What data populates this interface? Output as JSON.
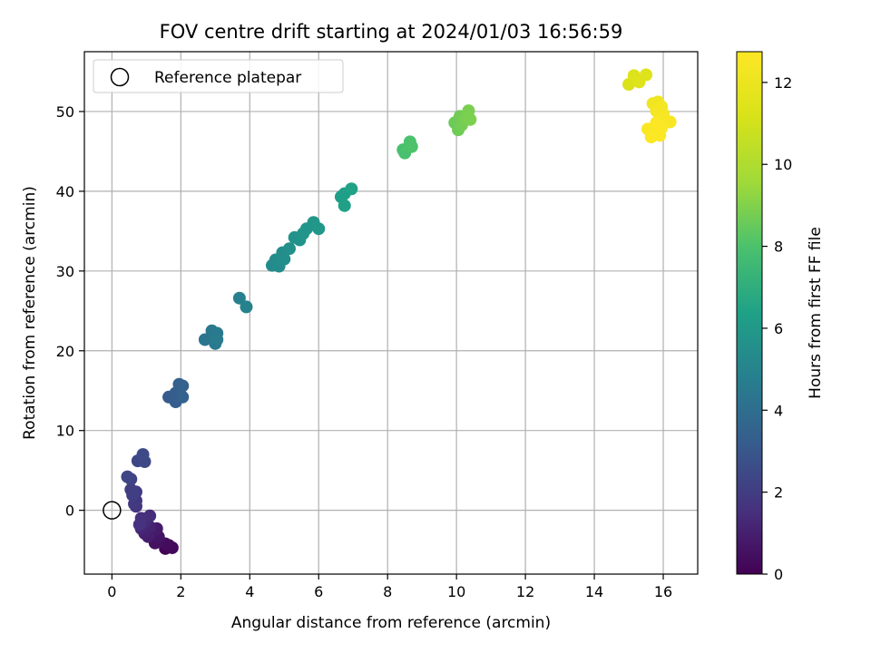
{
  "chart_data": {
    "type": "scatter",
    "title": "FOV centre drift starting at 2024/01/03 16:56:59",
    "xlabel": "Angular distance from reference (arcmin)",
    "ylabel": "Rotation from reference (arcmin)",
    "xlim": [
      -0.8,
      17
    ],
    "ylim": [
      -8,
      57.5
    ],
    "xticks": [
      0,
      2,
      4,
      6,
      8,
      10,
      12,
      14,
      16
    ],
    "yticks": [
      0,
      10,
      20,
      30,
      40,
      50
    ],
    "grid": true,
    "legend": {
      "position": "top-left",
      "entries": [
        "Reference platepar"
      ]
    },
    "reference_point": {
      "x": 0,
      "y": 0
    },
    "colorbar": {
      "label": "Hours from first FF file",
      "range": [
        0,
        12.75
      ],
      "ticks": [
        0,
        2,
        4,
        6,
        8,
        10,
        12
      ],
      "colormap": "viridis"
    },
    "series": [
      {
        "points": [
          {
            "x": 1.55,
            "y": -4.8,
            "h": 0.05
          },
          {
            "x": 1.65,
            "y": -4.4,
            "h": 0.15
          },
          {
            "x": 1.75,
            "y": -4.7,
            "h": 0.25
          },
          {
            "x": 1.55,
            "y": -4.2,
            "h": 0.35
          },
          {
            "x": 1.4,
            "y": -3.9,
            "h": 0.45
          },
          {
            "x": 1.25,
            "y": -4.1,
            "h": 0.55
          },
          {
            "x": 1.35,
            "y": -3.3,
            "h": 0.65
          },
          {
            "x": 1.2,
            "y": -2.7,
            "h": 0.75
          },
          {
            "x": 1.3,
            "y": -2.3,
            "h": 0.85
          },
          {
            "x": 1.05,
            "y": -3.3,
            "h": 0.95
          },
          {
            "x": 0.95,
            "y": -2.9,
            "h": 1.05
          },
          {
            "x": 1.1,
            "y": -2.1,
            "h": 1.15
          },
          {
            "x": 0.85,
            "y": -2.3,
            "h": 1.25
          },
          {
            "x": 0.95,
            "y": -1.5,
            "h": 1.35
          },
          {
            "x": 1.1,
            "y": -0.7,
            "h": 1.45
          },
          {
            "x": 0.85,
            "y": -1.0,
            "h": 1.55
          },
          {
            "x": 0.8,
            "y": -1.8,
            "h": 1.6
          },
          {
            "x": 0.7,
            "y": 0.5,
            "h": 1.7
          },
          {
            "x": 0.7,
            "y": 1.2,
            "h": 1.8
          },
          {
            "x": 0.65,
            "y": 0.8,
            "h": 1.85
          },
          {
            "x": 0.7,
            "y": 2.3,
            "h": 1.95
          },
          {
            "x": 0.55,
            "y": 2.6,
            "h": 2.05
          },
          {
            "x": 0.6,
            "y": 1.9,
            "h": 2.1
          },
          {
            "x": 0.55,
            "y": 3.9,
            "h": 2.2
          },
          {
            "x": 0.45,
            "y": 4.2,
            "h": 2.3
          },
          {
            "x": 0.75,
            "y": 6.2,
            "h": 2.4
          },
          {
            "x": 0.95,
            "y": 6.1,
            "h": 2.45
          },
          {
            "x": 0.9,
            "y": 7.0,
            "h": 2.5
          },
          {
            "x": 1.65,
            "y": 14.2,
            "h": 3.2
          },
          {
            "x": 1.85,
            "y": 13.6,
            "h": 3.25
          },
          {
            "x": 1.85,
            "y": 14.7,
            "h": 3.3
          },
          {
            "x": 1.95,
            "y": 15.8,
            "h": 3.35
          },
          {
            "x": 2.05,
            "y": 15.6,
            "h": 3.4
          },
          {
            "x": 2.05,
            "y": 14.2,
            "h": 3.45
          },
          {
            "x": 2.7,
            "y": 21.4,
            "h": 4.35
          },
          {
            "x": 2.9,
            "y": 22.5,
            "h": 4.4
          },
          {
            "x": 2.95,
            "y": 21.6,
            "h": 4.45
          },
          {
            "x": 3.0,
            "y": 20.9,
            "h": 4.5
          },
          {
            "x": 3.05,
            "y": 22.2,
            "h": 4.55
          },
          {
            "x": 3.05,
            "y": 21.4,
            "h": 4.6
          },
          {
            "x": 3.7,
            "y": 26.6,
            "h": 4.85
          },
          {
            "x": 3.9,
            "y": 25.5,
            "h": 4.9
          },
          {
            "x": 4.65,
            "y": 30.7,
            "h": 5.35
          },
          {
            "x": 4.75,
            "y": 31.4,
            "h": 5.4
          },
          {
            "x": 4.85,
            "y": 30.6,
            "h": 5.45
          },
          {
            "x": 4.95,
            "y": 32.3,
            "h": 5.5
          },
          {
            "x": 5.0,
            "y": 31.5,
            "h": 5.55
          },
          {
            "x": 5.15,
            "y": 32.8,
            "h": 5.6
          },
          {
            "x": 5.3,
            "y": 34.2,
            "h": 5.65
          },
          {
            "x": 5.45,
            "y": 33.9,
            "h": 5.7
          },
          {
            "x": 5.55,
            "y": 34.7,
            "h": 5.75
          },
          {
            "x": 5.65,
            "y": 35.3,
            "h": 5.8
          },
          {
            "x": 5.85,
            "y": 36.1,
            "h": 5.85
          },
          {
            "x": 6.0,
            "y": 35.3,
            "h": 5.9
          },
          {
            "x": 6.65,
            "y": 39.3,
            "h": 6.25
          },
          {
            "x": 6.75,
            "y": 39.7,
            "h": 6.3
          },
          {
            "x": 6.75,
            "y": 38.2,
            "h": 6.35
          },
          {
            "x": 6.95,
            "y": 40.3,
            "h": 6.4
          },
          {
            "x": 8.45,
            "y": 45.2,
            "h": 7.85
          },
          {
            "x": 8.5,
            "y": 44.8,
            "h": 7.9
          },
          {
            "x": 8.6,
            "y": 45.5,
            "h": 7.95
          },
          {
            "x": 8.65,
            "y": 46.2,
            "h": 8.0
          },
          {
            "x": 8.7,
            "y": 45.6,
            "h": 8.05
          },
          {
            "x": 9.95,
            "y": 48.6,
            "h": 8.6
          },
          {
            "x": 10.05,
            "y": 47.7,
            "h": 8.65
          },
          {
            "x": 10.1,
            "y": 49.4,
            "h": 8.7
          },
          {
            "x": 10.15,
            "y": 48.3,
            "h": 8.75
          },
          {
            "x": 10.25,
            "y": 49.2,
            "h": 8.8
          },
          {
            "x": 10.35,
            "y": 50.1,
            "h": 8.85
          },
          {
            "x": 10.4,
            "y": 49.0,
            "h": 8.9
          },
          {
            "x": 15.0,
            "y": 53.4,
            "h": 11.3
          },
          {
            "x": 15.15,
            "y": 54.5,
            "h": 11.35
          },
          {
            "x": 15.3,
            "y": 53.7,
            "h": 11.4
          },
          {
            "x": 15.5,
            "y": 54.6,
            "h": 11.45
          },
          {
            "x": 15.7,
            "y": 51.0,
            "h": 12.2
          },
          {
            "x": 15.85,
            "y": 51.2,
            "h": 12.25
          },
          {
            "x": 15.95,
            "y": 50.6,
            "h": 12.3
          },
          {
            "x": 15.8,
            "y": 50.1,
            "h": 12.35
          },
          {
            "x": 15.9,
            "y": 49.3,
            "h": 12.4
          },
          {
            "x": 16.0,
            "y": 49.7,
            "h": 12.45
          },
          {
            "x": 16.05,
            "y": 48.6,
            "h": 12.5
          },
          {
            "x": 16.2,
            "y": 48.7,
            "h": 12.55
          },
          {
            "x": 15.85,
            "y": 48.3,
            "h": 12.55
          },
          {
            "x": 15.55,
            "y": 47.8,
            "h": 12.6
          },
          {
            "x": 15.75,
            "y": 47.3,
            "h": 12.62
          },
          {
            "x": 15.65,
            "y": 46.8,
            "h": 12.65
          },
          {
            "x": 15.9,
            "y": 47.0,
            "h": 12.68
          },
          {
            "x": 15.8,
            "y": 48.6,
            "h": 12.7
          },
          {
            "x": 15.95,
            "y": 47.9,
            "h": 12.72
          }
        ]
      }
    ]
  }
}
